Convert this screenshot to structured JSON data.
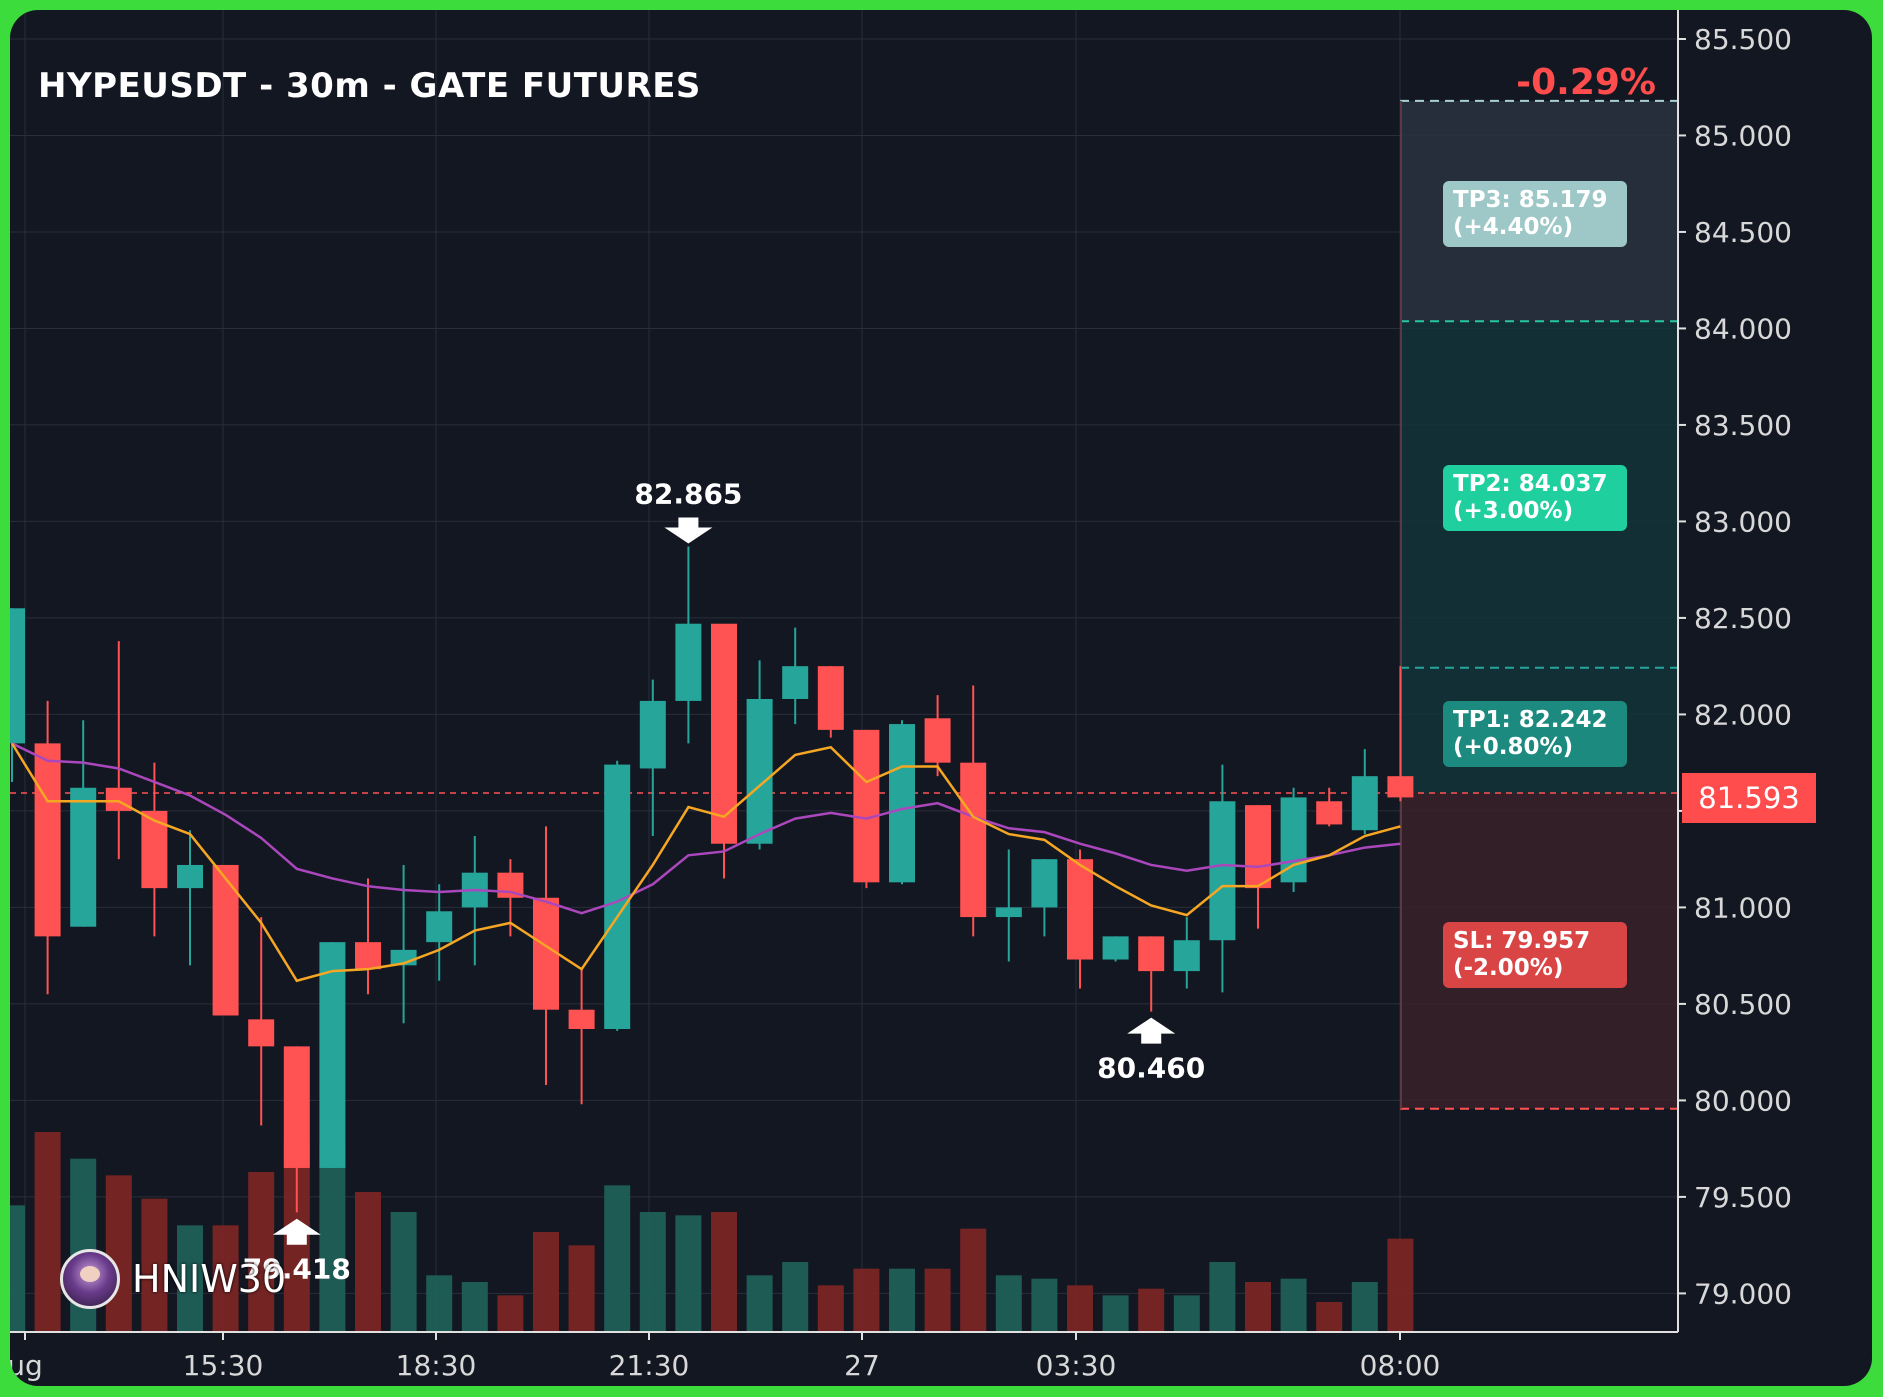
{
  "header": {
    "title": "HYPEUSDT - 30m - GATE FUTURES",
    "change": "-0.29%"
  },
  "watermark": {
    "name": "HNIW30"
  },
  "levels": {
    "tp3": {
      "line1": "TP3: 85.179",
      "line2": "(+4.40%)",
      "value": 85.179,
      "color": "#9ec7c7"
    },
    "tp2": {
      "line1": "TP2: 84.037",
      "line2": "(+3.00%)",
      "value": 84.037,
      "color": "#1fcf9e"
    },
    "tp1": {
      "line1": "TP1: 82.242",
      "line2": "(+0.80%)",
      "value": 82.242,
      "color": "#1d8a80"
    },
    "sl": {
      "line1": "SL: 79.957",
      "line2": "(-2.00%)",
      "value": 79.957,
      "color": "#d94444"
    },
    "entry": {
      "value": 81.593,
      "label": "81.593"
    }
  },
  "colors": {
    "up": "#26a69a",
    "down": "#ff5252",
    "ema_fast": "#f5a623",
    "ema_slow": "#ab47bc",
    "background": "#131722",
    "grid": "#2a2e39"
  },
  "chart_data": {
    "type": "candlestick",
    "title": "HYPEUSDT - 30m - GATE FUTURES",
    "ylim": [
      78.8,
      85.65
    ],
    "y_ticks": [
      "85.500",
      "85.000",
      "84.500",
      "84.000",
      "83.500",
      "83.000",
      "82.500",
      "82.000",
      "81.500",
      "81.000",
      "80.500",
      "80.000",
      "79.500",
      "79.000"
    ],
    "x_ticks": [
      "ug",
      "15:30",
      "18:30",
      "21:30",
      "27",
      "03:30",
      "08:00"
    ],
    "grid": true,
    "candles": [
      {
        "o": 81.85,
        "h": 82.55,
        "l": 81.65,
        "c": 82.55
      },
      {
        "o": 81.85,
        "h": 82.07,
        "l": 80.55,
        "c": 80.85
      },
      {
        "o": 80.9,
        "h": 81.97,
        "l": 80.9,
        "c": 81.62
      },
      {
        "o": 81.62,
        "h": 82.38,
        "l": 81.25,
        "c": 81.5
      },
      {
        "o": 81.5,
        "h": 81.75,
        "l": 80.85,
        "c": 81.1
      },
      {
        "o": 81.1,
        "h": 81.4,
        "l": 80.7,
        "c": 81.22
      },
      {
        "o": 81.22,
        "h": 81.22,
        "l": 80.45,
        "c": 80.44
      },
      {
        "o": 80.42,
        "h": 80.95,
        "l": 79.87,
        "c": 80.28
      },
      {
        "o": 80.28,
        "h": 80.28,
        "l": 79.42,
        "c": 79.65
      },
      {
        "o": 79.65,
        "h": 80.82,
        "l": 79.65,
        "c": 80.82
      },
      {
        "o": 80.82,
        "h": 81.15,
        "l": 80.55,
        "c": 80.68
      },
      {
        "o": 80.7,
        "h": 81.22,
        "l": 80.4,
        "c": 80.78
      },
      {
        "o": 80.82,
        "h": 81.12,
        "l": 80.62,
        "c": 80.98
      },
      {
        "o": 81.0,
        "h": 81.37,
        "l": 80.7,
        "c": 81.18
      },
      {
        "o": 81.18,
        "h": 81.25,
        "l": 80.85,
        "c": 81.05
      },
      {
        "o": 81.05,
        "h": 81.42,
        "l": 80.08,
        "c": 80.47
      },
      {
        "o": 80.47,
        "h": 80.68,
        "l": 79.98,
        "c": 80.37
      },
      {
        "o": 80.37,
        "h": 81.76,
        "l": 80.36,
        "c": 81.74
      },
      {
        "o": 81.72,
        "h": 82.18,
        "l": 81.37,
        "c": 82.07
      },
      {
        "o": 82.07,
        "h": 82.87,
        "l": 81.85,
        "c": 82.47
      },
      {
        "o": 82.47,
        "h": 82.45,
        "l": 81.15,
        "c": 81.33
      },
      {
        "o": 81.33,
        "h": 82.28,
        "l": 81.3,
        "c": 82.08
      },
      {
        "o": 82.08,
        "h": 82.45,
        "l": 81.95,
        "c": 82.25
      },
      {
        "o": 82.25,
        "h": 82.25,
        "l": 81.88,
        "c": 81.92
      },
      {
        "o": 81.92,
        "h": 81.92,
        "l": 81.1,
        "c": 81.13
      },
      {
        "o": 81.13,
        "h": 81.97,
        "l": 81.12,
        "c": 81.95
      },
      {
        "o": 81.98,
        "h": 82.1,
        "l": 81.68,
        "c": 81.75
      },
      {
        "o": 81.75,
        "h": 82.15,
        "l": 80.85,
        "c": 80.95
      },
      {
        "o": 80.95,
        "h": 81.3,
        "l": 80.72,
        "c": 81.0
      },
      {
        "o": 81.0,
        "h": 81.25,
        "l": 80.85,
        "c": 81.25
      },
      {
        "o": 81.25,
        "h": 81.3,
        "l": 80.58,
        "c": 80.73
      },
      {
        "o": 80.73,
        "h": 80.85,
        "l": 80.72,
        "c": 80.85
      },
      {
        "o": 80.85,
        "h": 80.85,
        "l": 80.46,
        "c": 80.67
      },
      {
        "o": 80.67,
        "h": 80.95,
        "l": 80.58,
        "c": 80.83
      },
      {
        "o": 80.83,
        "h": 81.74,
        "l": 80.56,
        "c": 81.55
      },
      {
        "o": 81.53,
        "h": 81.53,
        "l": 80.89,
        "c": 81.1
      },
      {
        "o": 81.13,
        "h": 81.62,
        "l": 81.08,
        "c": 81.57
      },
      {
        "o": 81.55,
        "h": 81.62,
        "l": 81.42,
        "c": 81.43
      },
      {
        "o": 81.4,
        "h": 81.82,
        "l": 81.38,
        "c": 81.68
      },
      {
        "o": 81.68,
        "h": 82.25,
        "l": 81.55,
        "c": 81.57
      }
    ],
    "volume": [
      38,
      60,
      52,
      47,
      40,
      32,
      32,
      48,
      57,
      57,
      42,
      36,
      17,
      15,
      11,
      30,
      26,
      44,
      36,
      35,
      36,
      17,
      21,
      14,
      19,
      19,
      19,
      31,
      17,
      16,
      14,
      11,
      13,
      11,
      21,
      15,
      16,
      9,
      15,
      28
    ],
    "ema_fast": [
      81.85,
      81.55,
      81.55,
      81.55,
      81.45,
      81.38,
      81.15,
      80.92,
      80.62,
      80.67,
      80.68,
      80.71,
      80.78,
      80.88,
      80.92,
      80.8,
      80.68,
      80.95,
      81.22,
      81.52,
      81.47,
      81.63,
      81.79,
      81.83,
      81.65,
      81.73,
      81.73,
      81.47,
      81.38,
      81.35,
      81.22,
      81.11,
      81.01,
      80.96,
      81.11,
      81.11,
      81.22,
      81.27,
      81.37,
      81.42
    ],
    "ema_slow": [
      81.85,
      81.76,
      81.75,
      81.72,
      81.65,
      81.58,
      81.48,
      81.36,
      81.2,
      81.15,
      81.11,
      81.09,
      81.08,
      81.09,
      81.08,
      81.03,
      80.97,
      81.03,
      81.12,
      81.27,
      81.29,
      81.38,
      81.46,
      81.49,
      81.46,
      81.51,
      81.54,
      81.47,
      81.41,
      81.39,
      81.33,
      81.28,
      81.22,
      81.19,
      81.22,
      81.21,
      81.24,
      81.27,
      81.31,
      81.33
    ],
    "annotations": [
      {
        "label": "82.865",
        "candle": 19,
        "value": 82.865,
        "dir": "down"
      },
      {
        "label": "79.418",
        "candle": 8,
        "value": 79.418,
        "dir": "up"
      },
      {
        "label": "80.460",
        "candle": 32,
        "value": 80.46,
        "dir": "up"
      }
    ]
  }
}
